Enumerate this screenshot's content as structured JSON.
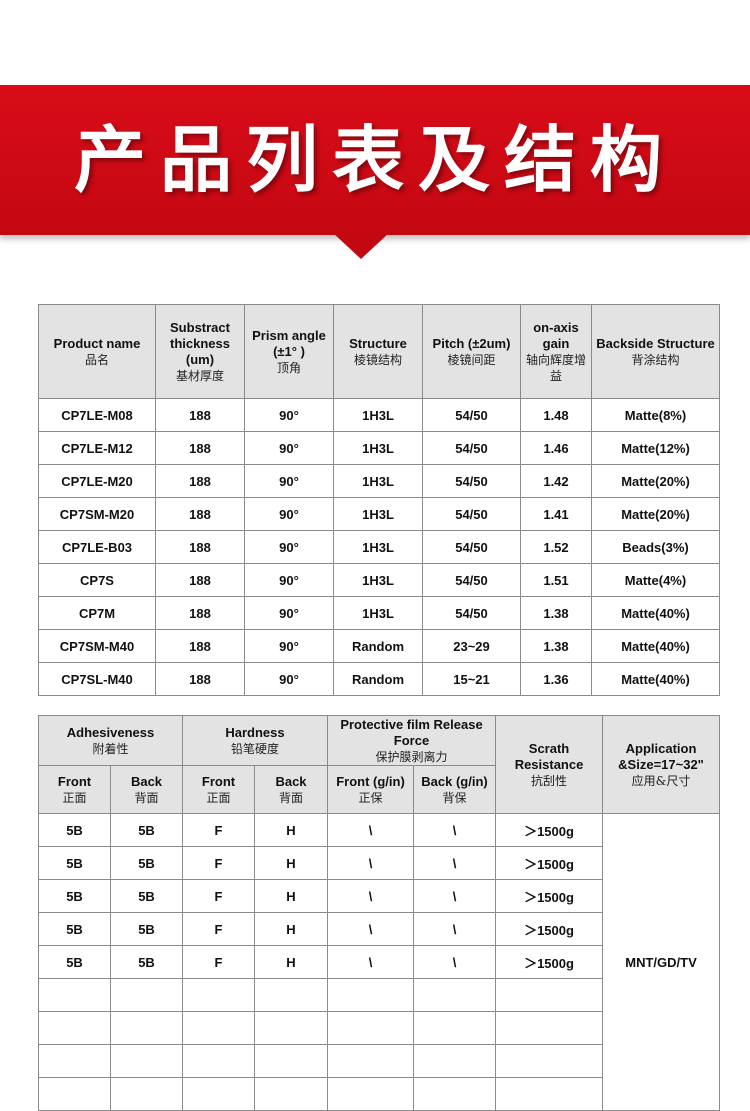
{
  "banner": {
    "title": "产品列表及结构",
    "color": "#d20c16"
  },
  "table1": {
    "headers": [
      {
        "en": "Product name",
        "cn": "品名"
      },
      {
        "en": "Substract thickness (um)",
        "cn": "基材厚度"
      },
      {
        "en": "Prism angle (±1° )",
        "cn": "顶角"
      },
      {
        "en": "Structure",
        "cn": "棱镜结构"
      },
      {
        "en": "Pitch (±2um)",
        "cn": "棱镜间距"
      },
      {
        "en": "on-axis gain",
        "cn": "轴向辉度增益"
      },
      {
        "en": "Backside Structure",
        "cn": "背涂结构"
      }
    ],
    "rows": [
      [
        "CP7LE-M08",
        "188",
        "90°",
        "1H3L",
        "54/50",
        "1.48",
        "Matte(8%)"
      ],
      [
        "CP7LE-M12",
        "188",
        "90°",
        "1H3L",
        "54/50",
        "1.46",
        "Matte(12%)"
      ],
      [
        "CP7LE-M20",
        "188",
        "90°",
        "1H3L",
        "54/50",
        "1.42",
        "Matte(20%)"
      ],
      [
        "CP7SM-M20",
        "188",
        "90°",
        "1H3L",
        "54/50",
        "1.41",
        "Matte(20%)"
      ],
      [
        "CP7LE-B03",
        "188",
        "90°",
        "1H3L",
        "54/50",
        "1.52",
        "Beads(3%)"
      ],
      [
        "CP7S",
        "188",
        "90°",
        "1H3L",
        "54/50",
        "1.51",
        "Matte(4%)"
      ],
      [
        "CP7M",
        "188",
        "90°",
        "1H3L",
        "54/50",
        "1.38",
        "Matte(40%)"
      ],
      [
        "CP7SM-M40",
        "188",
        "90°",
        "Random",
        "23~29",
        "1.38",
        "Matte(40%)"
      ],
      [
        "CP7SL-M40",
        "188",
        "90°",
        "Random",
        "15~21",
        "1.36",
        "Matte(40%)"
      ]
    ]
  },
  "table2": {
    "groups": [
      {
        "en": "Adhesiveness",
        "cn": "附着性"
      },
      {
        "en": "Hardness",
        "cn": "铅笔硬度"
      },
      {
        "en": "Protective film Release Force",
        "cn": "保护膜剥离力"
      },
      {
        "en": "Scrath Resistance",
        "cn": "抗刮性"
      },
      {
        "en": "Application &Size=17~32\"",
        "cn": "应用&尺寸"
      }
    ],
    "subheaders": [
      {
        "en": "Front",
        "cn": "正面"
      },
      {
        "en": "Back",
        "cn": "背面"
      },
      {
        "en": "Front",
        "cn": "正面"
      },
      {
        "en": "Back",
        "cn": "背面"
      },
      {
        "en": "Front (g/in)",
        "cn": "正保"
      },
      {
        "en": "Back (g/in)",
        "cn": "背保"
      }
    ],
    "rows": [
      [
        "5B",
        "5B",
        "F",
        "H",
        "\\",
        "\\",
        "＞1500g"
      ],
      [
        "5B",
        "5B",
        "F",
        "H",
        "\\",
        "\\",
        "＞1500g"
      ],
      [
        "5B",
        "5B",
        "F",
        "H",
        "\\",
        "\\",
        "＞1500g"
      ],
      [
        "5B",
        "5B",
        "F",
        "H",
        "\\",
        "\\",
        "＞1500g"
      ],
      [
        "5B",
        "5B",
        "F",
        "H",
        "\\",
        "\\",
        "＞1500g"
      ]
    ],
    "application": "MNT/GD/TV"
  }
}
